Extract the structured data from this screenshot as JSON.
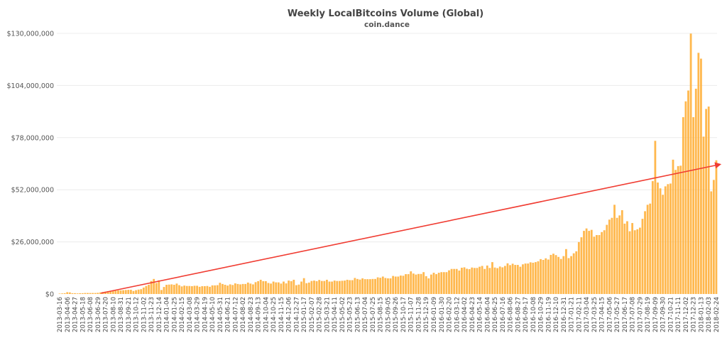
{
  "chart_data": {
    "type": "bar",
    "title": "Weekly LocalBitcoins Volume (Global)",
    "subtitle": "coin.dance",
    "xlabel": "",
    "ylabel": "",
    "ylim": [
      0,
      130000000
    ],
    "y_unit": "USD",
    "yticks": [
      0,
      26000000,
      52000000,
      78000000,
      104000000,
      130000000
    ],
    "ytick_labels": [
      "$0",
      "$26,000,000",
      "$52,000,000",
      "$78,000,000",
      "$104,000,000",
      "$130,000,000"
    ],
    "grid": "horizontal",
    "x_start": "2013-03-16",
    "x_interval_days": 7,
    "x_tick_every": 3,
    "x_tick_labels": [
      "2013-03-16",
      "2013-04-06",
      "2013-04-27",
      "2013-05-18",
      "2013-06-08",
      "2013-06-29",
      "2013-07-20",
      "2013-08-10",
      "2013-08-31",
      "2013-09-21",
      "2013-10-12",
      "2013-11-02",
      "2013-11-23",
      "2013-12-14",
      "2014-01-04",
      "2014-01-25",
      "2014-02-15",
      "2014-03-08",
      "2014-03-29",
      "2014-04-19",
      "2014-05-10",
      "2014-05-31",
      "2014-06-21",
      "2014-07-12",
      "2014-08-02",
      "2014-08-23",
      "2014-09-13",
      "2014-10-04",
      "2014-10-25",
      "2014-11-15",
      "2014-12-06",
      "2014-12-27",
      "2015-01-17",
      "2015-02-07",
      "2015-02-28",
      "2015-03-21",
      "2015-04-11",
      "2015-05-02",
      "2015-05-23",
      "2015-06-13",
      "2015-07-04",
      "2015-07-25",
      "2015-08-15",
      "2015-09-05",
      "2015-09-26",
      "2015-10-17",
      "2015-11-07",
      "2015-11-28",
      "2015-12-19",
      "2016-01-09",
      "2016-01-30",
      "2016-02-20",
      "2016-03-12",
      "2016-04-02",
      "2016-04-23",
      "2016-05-14",
      "2016-06-04",
      "2016-06-25",
      "2016-07-16",
      "2016-08-06",
      "2016-08-27",
      "2016-09-17",
      "2016-10-08",
      "2016-10-29",
      "2016-11-19",
      "2016-12-10",
      "2016-12-31",
      "2017-01-21",
      "2017-02-11",
      "2017-03-04",
      "2017-03-25",
      "2017-04-15",
      "2017-05-06",
      "2017-05-27",
      "2017-06-17",
      "2017-07-08",
      "2017-07-29",
      "2017-08-19",
      "2017-09-09",
      "2017-09-30",
      "2017-10-21",
      "2017-11-11",
      "2017-12-02",
      "2017-12-23",
      "2018-01-13",
      "2018-02-03",
      "2018-02-24"
    ],
    "values_millions": [
      0.2,
      0.3,
      0.4,
      0.9,
      0.8,
      0.4,
      0.4,
      0.3,
      0.4,
      0.4,
      0.5,
      0.5,
      0.5,
      0.5,
      0.5,
      0.6,
      0.8,
      1.0,
      1.2,
      1.4,
      1.5,
      1.6,
      1.7,
      1.8,
      1.8,
      1.9,
      2.0,
      2.1,
      2.1,
      1.5,
      1.9,
      2.2,
      2.4,
      3.2,
      4.0,
      4.6,
      6.5,
      7.5,
      5.5,
      6.8,
      2.0,
      3.5,
      4.6,
      4.7,
      4.8,
      4.6,
      5.2,
      4.4,
      3.8,
      4.2,
      4.0,
      4.0,
      3.9,
      4.1,
      4.1,
      3.6,
      3.9,
      3.9,
      4.0,
      3.6,
      4.3,
      4.3,
      4.4,
      5.6,
      5.0,
      4.6,
      4.2,
      4.8,
      4.5,
      5.3,
      5.0,
      4.8,
      5.0,
      5.0,
      5.7,
      5.2,
      4.8,
      5.9,
      6.4,
      7.1,
      6.4,
      6.4,
      5.5,
      5.2,
      6.2,
      5.8,
      5.8,
      5.2,
      6.2,
      5.3,
      6.7,
      6.4,
      7.1,
      4.4,
      4.7,
      6.2,
      7.9,
      5.4,
      5.7,
      6.5,
      6.7,
      6.4,
      7.0,
      6.5,
      6.5,
      7.1,
      6.2,
      6.2,
      6.7,
      6.5,
      6.5,
      6.6,
      6.7,
      7.1,
      6.9,
      6.9,
      8.0,
      7.5,
      7.2,
      7.8,
      7.4,
      7.4,
      7.4,
      7.5,
      7.5,
      8.3,
      8.1,
      8.7,
      8.0,
      7.8,
      7.8,
      9.0,
      8.7,
      8.7,
      9.2,
      9.1,
      9.9,
      9.9,
      11.3,
      10.2,
      9.7,
      10.0,
      10.0,
      10.9,
      8.9,
      7.8,
      9.7,
      10.6,
      9.9,
      10.6,
      10.9,
      10.9,
      10.9,
      11.8,
      12.5,
      12.5,
      12.5,
      11.7,
      13.1,
      13.3,
      12.6,
      12.4,
      13.2,
      13.0,
      13.0,
      13.6,
      14.0,
      12.5,
      14.2,
      13.0,
      15.9,
      13.2,
      12.9,
      13.7,
      13.3,
      14.0,
      15.3,
      14.4,
      15.1,
      14.5,
      14.5,
      13.6,
      14.8,
      15.2,
      15.2,
      15.8,
      15.6,
      15.9,
      16.3,
      17.4,
      17.0,
      17.8,
      17.2,
      19.5,
      20.1,
      19.4,
      18.5,
      17.5,
      18.9,
      22.4,
      17.9,
      18.9,
      20.3,
      21.3,
      25.9,
      28.3,
      31.5,
      32.7,
      31.5,
      32.0,
      28.6,
      29.4,
      29.4,
      30.9,
      31.8,
      34.5,
      37.1,
      38.0,
      44.5,
      38.0,
      39.2,
      41.8,
      35.1,
      36.3,
      31.3,
      35.4,
      31.8,
      32.3,
      33.1,
      37.5,
      41.3,
      44.5,
      45.1,
      56.3,
      76.4,
      55.6,
      52.7,
      49.5,
      53.7,
      54.8,
      55.1,
      67.0,
      61.9,
      63.8,
      64.0,
      88.2,
      96.1,
      101.5,
      129.9,
      88.2,
      102.4,
      120.3,
      117.4,
      78.5,
      92.3,
      93.5,
      51.2,
      56.9,
      66.7
    ],
    "trend_arrow": {
      "start_index": 16.2,
      "start_value_millions": 0.4,
      "end_index": 260,
      "end_value_millions": 64.8
    },
    "colors": {
      "bar": "#ffb03b",
      "trend": "#f03c32",
      "grid": "#ececec"
    }
  }
}
